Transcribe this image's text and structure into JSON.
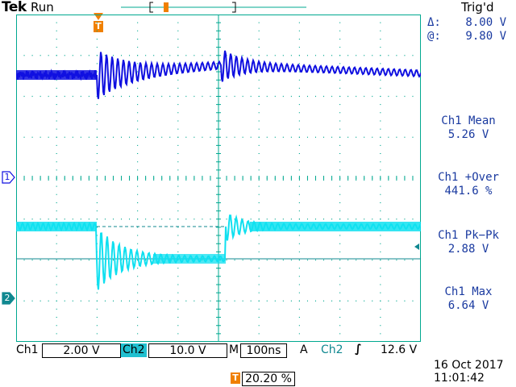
{
  "header": {
    "brand": "Tek",
    "run_state": "Run",
    "trigger_state": "Trig'd"
  },
  "cursor": {
    "delta_label": "Δ:",
    "delta_value": "8.00 V",
    "at_label": "@:",
    "at_value": "9.80 V"
  },
  "measurements": [
    {
      "label": "Ch1 Mean",
      "value": "5.26 V"
    },
    {
      "label": "Ch1 +Over",
      "value": "441.6 %"
    },
    {
      "label": "Ch1 Pk−Pk",
      "value": "2.88 V"
    },
    {
      "label": "Ch1 Max",
      "value": "6.64 V"
    }
  ],
  "channel_markers": {
    "ch1": "1",
    "ch2": "2",
    "trigger": "T"
  },
  "status": {
    "ch1_label": "Ch1",
    "ch1_scale": "2.00 V",
    "ch2_label": "Ch2",
    "ch2_scale": "10.0 V",
    "m_label": "M",
    "timebase": "100ns",
    "a_label": "A",
    "trig_source": "Ch2",
    "trig_slope": "∫",
    "trig_level": "12.6 V",
    "trig_position": "20.20 %",
    "date": "16 Oct  2017",
    "time": "11:01:42"
  },
  "colors": {
    "ch1": "#1010e0",
    "ch2": "#10e0f0",
    "ch2_dark": "#108890",
    "trigger": "#f08000",
    "graticule": "#00a890"
  }
}
